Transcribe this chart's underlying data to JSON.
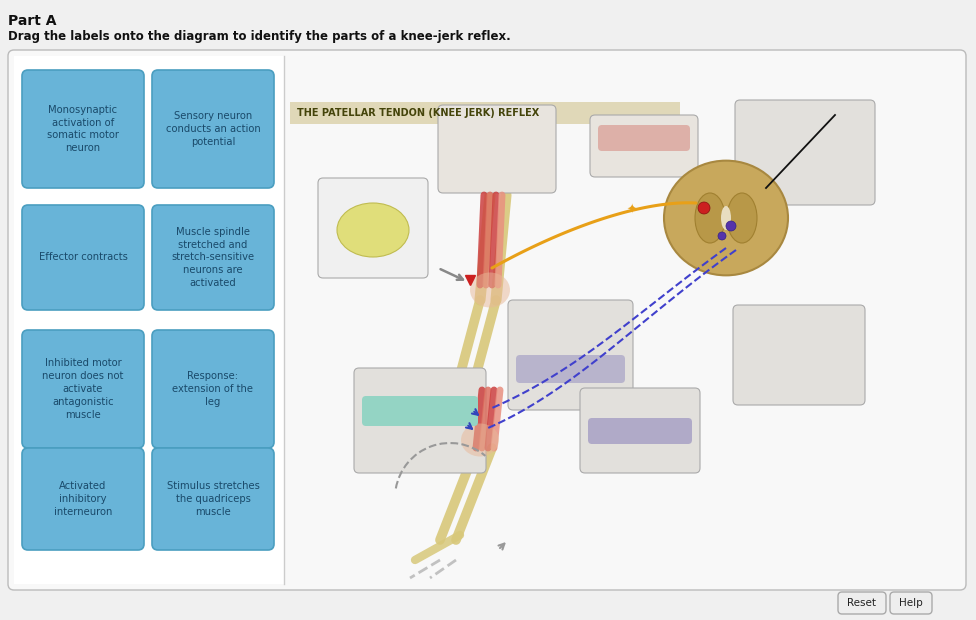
{
  "title_part": "Part A",
  "subtitle": "Drag the labels onto the diagram to identify the parts of a knee-jerk reflex.",
  "outer_bg": "#f0f0f0",
  "panel_bg": "#f8f8f8",
  "white_bg": "#ffffff",
  "blue_color": "#68b4d8",
  "blue_border": "#4a9ec0",
  "blue_text": "#1a4a6a",
  "diagram_title": "THE PATELLAR TENDON (KNEE JERK) REFLEX",
  "diagram_title_bg": "#e0d8b8",
  "label_boxes": [
    {
      "text": "Monosynaptic\nactivation of\nsomatic motor\nneuron",
      "col": 0,
      "row": 0
    },
    {
      "text": "Sensory neuron\nconducts an action\npotential",
      "col": 1,
      "row": 0
    },
    {
      "text": "Effector contracts",
      "col": 0,
      "row": 1
    },
    {
      "text": "Muscle spindle\nstretched and\nstretch-sensitive\nneurons are\nactivated",
      "col": 1,
      "row": 1
    },
    {
      "text": "Inhibited motor\nneuron does not\nactivate\nantagonistic\nmuscle",
      "col": 0,
      "row": 2
    },
    {
      "text": "Response:\nextension of the\nleg",
      "col": 1,
      "row": 2
    },
    {
      "text": "Activated\ninhibitory\ninterneuron",
      "col": 0,
      "row": 3
    },
    {
      "text": "Stimulus stretches\nthe quadriceps\nmuscle",
      "col": 1,
      "row": 3
    }
  ],
  "reset_btn": {
    "text": "Reset"
  },
  "help_btn": {
    "text": "Help"
  }
}
